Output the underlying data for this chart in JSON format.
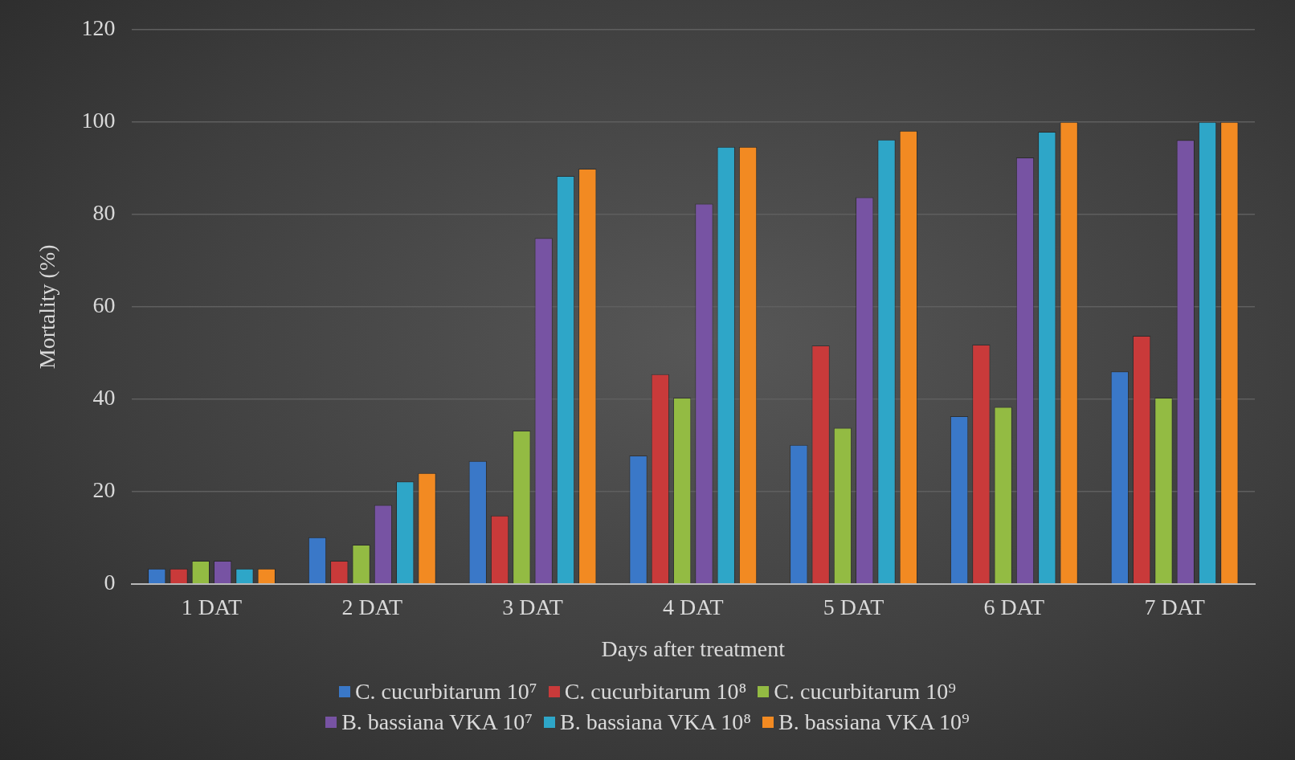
{
  "chart_data": {
    "type": "bar",
    "xlabel": "Days after treatment",
    "ylabel": "Mortality (%)",
    "categories": [
      "1 DAT",
      "2 DAT",
      "3 DAT",
      "4 DAT",
      "5 DAT",
      "6 DAT",
      "7 DAT"
    ],
    "series": [
      {
        "name": "C. cucurbitarum 10⁷",
        "color": "#3a78c8",
        "values": [
          3.3,
          10.1,
          26.6,
          27.8,
          30.1,
          36.3,
          46.0
        ]
      },
      {
        "name": "C. cucurbitarum 10⁸",
        "color": "#c93a3a",
        "values": [
          3.3,
          5.0,
          14.8,
          45.4,
          51.6,
          51.8,
          53.7
        ]
      },
      {
        "name": "C. cucurbitarum 10⁹",
        "color": "#93bb43",
        "values": [
          5.0,
          8.5,
          33.2,
          40.3,
          33.8,
          38.3,
          40.3
        ]
      },
      {
        "name": "B. bassiana VKA 10⁷",
        "color": "#7753a3",
        "values": [
          5.0,
          17.1,
          74.9,
          82.3,
          83.7,
          92.3,
          96.1
        ]
      },
      {
        "name": "B. bassiana VKA 10⁸",
        "color": "#2ea6c8",
        "values": [
          3.3,
          22.2,
          88.3,
          94.6,
          96.2,
          97.9,
          100
        ]
      },
      {
        "name": "B. bassiana VKA 10⁹",
        "color": "#f28a22",
        "values": [
          3.3,
          24.0,
          89.9,
          94.6,
          98.1,
          100,
          100
        ]
      }
    ],
    "ylim": [
      0,
      120
    ],
    "yticks": [
      0,
      20,
      40,
      60,
      80,
      100,
      120
    ],
    "grid": "y",
    "legend": "bottom"
  }
}
